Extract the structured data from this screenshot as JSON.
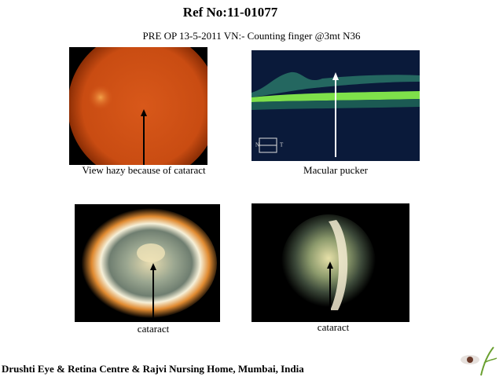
{
  "header": {
    "title": "Ref No:11-01077",
    "subtitle": "PRE OP 13-5-2011 VN:- Counting finger @3mt N36"
  },
  "figures": [
    {
      "caption": "View hazy because of cataract"
    },
    {
      "caption": "Macular pucker",
      "labels": [
        "N",
        "T"
      ]
    },
    {
      "caption": "cataract"
    },
    {
      "caption": "cataract"
    }
  ],
  "footer": {
    "text": "Drushti Eye & Retina Centre & Rajvi Nursing Home, Mumbai, India"
  }
}
